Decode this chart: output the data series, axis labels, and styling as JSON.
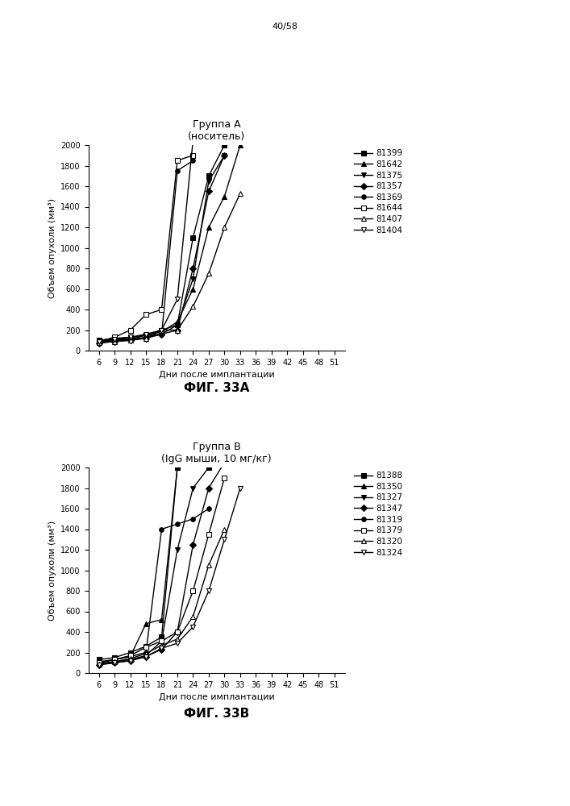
{
  "page_label": "40/58",
  "fig_a": {
    "title_line1": "Группа А",
    "title_line2": "(носитель)",
    "xlabel": "Дни после имплантации",
    "ylabel": "Объем опухоли (мм³)",
    "fig_label": "ФИГ. 33А",
    "xlim": [
      4,
      53
    ],
    "ylim": [
      0,
      2000
    ],
    "yticks": [
      0,
      200,
      400,
      600,
      800,
      1000,
      1200,
      1400,
      1600,
      1800,
      2000
    ],
    "xticks": [
      6,
      9,
      12,
      15,
      18,
      21,
      24,
      27,
      30,
      33,
      36,
      39,
      42,
      45,
      48,
      51
    ],
    "series": [
      {
        "label": "81399",
        "marker": "s",
        "fillstyle": "full",
        "x": [
          6,
          9,
          12,
          15,
          18,
          21,
          24,
          27,
          30,
          33
        ],
        "y": [
          100,
          120,
          130,
          150,
          200,
          250,
          1100,
          1700,
          2000,
          2050
        ]
      },
      {
        "label": "81642",
        "marker": "^",
        "fillstyle": "full",
        "x": [
          6,
          9,
          12,
          15,
          18,
          21,
          24,
          27,
          30,
          33
        ],
        "y": [
          90,
          110,
          120,
          160,
          180,
          280,
          600,
          1200,
          1500,
          2000
        ]
      },
      {
        "label": "81375",
        "marker": "v",
        "fillstyle": "full",
        "x": [
          6,
          9,
          12,
          15,
          18,
          21,
          24,
          27,
          30
        ],
        "y": [
          80,
          100,
          110,
          130,
          160,
          250,
          700,
          1650,
          1900
        ]
      },
      {
        "label": "81357",
        "marker": "D",
        "fillstyle": "full",
        "x": [
          6,
          9,
          12,
          15,
          18,
          21,
          24,
          27,
          30
        ],
        "y": [
          70,
          90,
          100,
          120,
          160,
          200,
          800,
          1550,
          1900
        ]
      },
      {
        "label": "81369",
        "marker": "o",
        "fillstyle": "full",
        "x": [
          6,
          9,
          12,
          15,
          18,
          21,
          24
        ],
        "y": [
          80,
          100,
          110,
          150,
          160,
          1750,
          1850
        ]
      },
      {
        "label": "81644",
        "marker": "s",
        "fillstyle": "none",
        "x": [
          6,
          9,
          12,
          15,
          18,
          21,
          24
        ],
        "y": [
          90,
          130,
          200,
          350,
          400,
          1850,
          1900
        ]
      },
      {
        "label": "81407",
        "marker": "^",
        "fillstyle": "none",
        "x": [
          6,
          9,
          12,
          15,
          18,
          21,
          24,
          27,
          30,
          33
        ],
        "y": [
          80,
          90,
          100,
          120,
          200,
          200,
          430,
          750,
          1200,
          1530
        ]
      },
      {
        "label": "81404",
        "marker": "v",
        "fillstyle": "none",
        "x": [
          6,
          9,
          12,
          15,
          18,
          21,
          24
        ],
        "y": [
          85,
          110,
          130,
          160,
          200,
          500,
          2050
        ]
      }
    ]
  },
  "fig_b": {
    "title_line1": "Группа В",
    "title_line2": "(IgG мыши, 10 мг/кг)",
    "xlabel": "Дни после имплантации",
    "ylabel": "Объем опухоли (мм³)",
    "fig_label": "ФИГ. 33В",
    "xlim": [
      4,
      53
    ],
    "ylim": [
      0,
      2000
    ],
    "yticks": [
      0,
      200,
      400,
      600,
      800,
      1000,
      1200,
      1400,
      1600,
      1800,
      2000
    ],
    "xticks": [
      6,
      9,
      12,
      15,
      18,
      21,
      24,
      27,
      30,
      33,
      36,
      39,
      42,
      45,
      48,
      51
    ],
    "series": [
      {
        "label": "81388",
        "marker": "s",
        "fillstyle": "full",
        "x": [
          6,
          9,
          12,
          15,
          18,
          21,
          24,
          27,
          30
        ],
        "y": [
          130,
          150,
          200,
          260,
          350,
          2000,
          2050,
          2000,
          2050
        ]
      },
      {
        "label": "81350",
        "marker": "^",
        "fillstyle": "full",
        "x": [
          6,
          9,
          12,
          15,
          18,
          21,
          24
        ],
        "y": [
          110,
          130,
          160,
          480,
          520,
          2000,
          2050
        ]
      },
      {
        "label": "81327",
        "marker": "v",
        "fillstyle": "full",
        "x": [
          6,
          9,
          12,
          15,
          18,
          21,
          24,
          27,
          30
        ],
        "y": [
          90,
          110,
          130,
          170,
          310,
          1200,
          1800,
          2000,
          2050
        ]
      },
      {
        "label": "81347",
        "marker": "D",
        "fillstyle": "full",
        "x": [
          6,
          9,
          12,
          15,
          18,
          21,
          24,
          27,
          30
        ],
        "y": [
          80,
          100,
          120,
          160,
          230,
          400,
          1250,
          1800,
          2050
        ]
      },
      {
        "label": "81319",
        "marker": "o",
        "fillstyle": "full",
        "x": [
          6,
          9,
          12,
          15,
          18,
          21,
          24,
          27
        ],
        "y": [
          100,
          130,
          160,
          200,
          1400,
          1450,
          1500,
          1600
        ]
      },
      {
        "label": "81379",
        "marker": "s",
        "fillstyle": "none",
        "x": [
          6,
          9,
          12,
          15,
          18,
          21,
          24,
          27,
          30
        ],
        "y": [
          100,
          130,
          170,
          250,
          310,
          400,
          800,
          1350,
          1900
        ]
      },
      {
        "label": "81320",
        "marker": "^",
        "fillstyle": "none",
        "x": [
          6,
          9,
          12,
          15,
          18,
          21,
          24,
          27,
          30
        ],
        "y": [
          90,
          110,
          140,
          190,
          270,
          330,
          550,
          1050,
          1400
        ]
      },
      {
        "label": "81324",
        "marker": "v",
        "fillstyle": "none",
        "x": [
          6,
          9,
          12,
          15,
          18,
          21,
          24,
          27,
          30,
          33
        ],
        "y": [
          80,
          100,
          120,
          160,
          240,
          290,
          450,
          800,
          1300,
          1800
        ]
      }
    ]
  },
  "line_color": "#000000",
  "background_color": "#ffffff",
  "font_size_title": 9,
  "font_size_axis_label": 8,
  "font_size_tick": 7,
  "font_size_legend": 7.5,
  "font_size_fig_label": 11,
  "font_size_page": 8
}
